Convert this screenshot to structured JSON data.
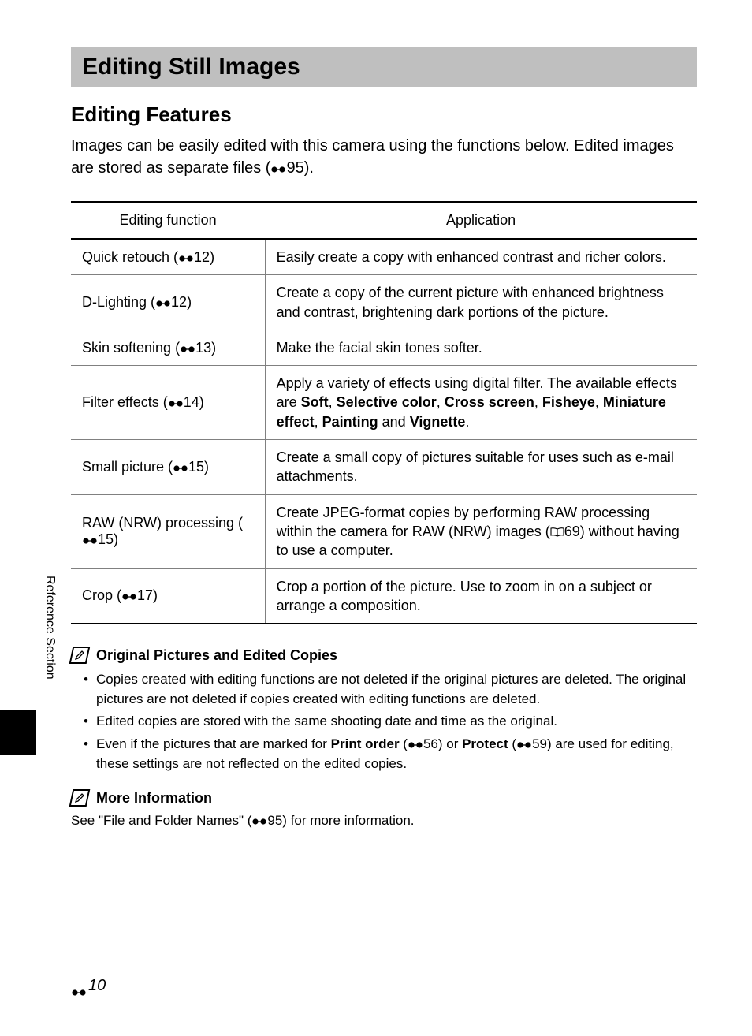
{
  "section_title": "Editing Still Images",
  "sub_heading": "Editing Features",
  "intro_prefix": "Images can be easily edited with this camera using the functions below. Edited images are stored as separate files (",
  "intro_ref": "95",
  "intro_suffix": ").",
  "table": {
    "headers": [
      "Editing function",
      "Application"
    ],
    "rows": [
      {
        "func": "Quick retouch",
        "ref": "12",
        "app_html": "Easily create a copy with enhanced contrast and richer colors."
      },
      {
        "func": "D-Lighting",
        "ref": "12",
        "app_html": "Create a copy of the current picture with enhanced brightness and contrast, brightening dark portions of the picture."
      },
      {
        "func": "Skin softening",
        "ref": "13",
        "app_html": "Make the facial skin tones softer."
      },
      {
        "func": "Filter effects",
        "ref": "14",
        "app_html": "Apply a variety of effects using digital filter. The available effects are <b>Soft</b>, <b>Selective color</b>, <b>Cross screen</b>, <b>Fisheye</b>, <b>Miniature effect</b>, <b>Painting</b> and <b>Vignette</b>."
      },
      {
        "func": "Small picture",
        "ref": "15",
        "app_html": "Create a small copy of pictures suitable for uses such as e-mail attachments."
      },
      {
        "func": "RAW (NRW) processing",
        "ref": "15",
        "app_html": "Create JPEG-format copies by performing RAW processing within the camera for RAW (NRW) images (__BOOK__69) without having to use a computer."
      },
      {
        "func": "Crop",
        "ref": "17",
        "app_html": "Crop a portion of the picture. Use to zoom in on a subject or arrange a composition."
      }
    ]
  },
  "notes1": {
    "title": "Original Pictures and Edited Copies",
    "items": [
      "Copies created with editing functions are not deleted if the original pictures are deleted. The original pictures are not deleted if copies created with editing functions are deleted.",
      "Edited copies are stored with the same shooting date and time as the original.",
      "Even if the pictures that are marked for <b>Print order</b> (__REF__56) or <b>Protect</b> (__REF__59) are used for editing, these settings are not reflected on the edited copies."
    ]
  },
  "notes2": {
    "title": "More Information",
    "text_html": "See \"File and Folder Names\" (__REF__95) for more information."
  },
  "side_label": "Reference Section",
  "page_number": "10",
  "colors": {
    "header_bg": "#bfbfbf",
    "border": "#808080",
    "text": "#000000",
    "bg": "#ffffff"
  }
}
